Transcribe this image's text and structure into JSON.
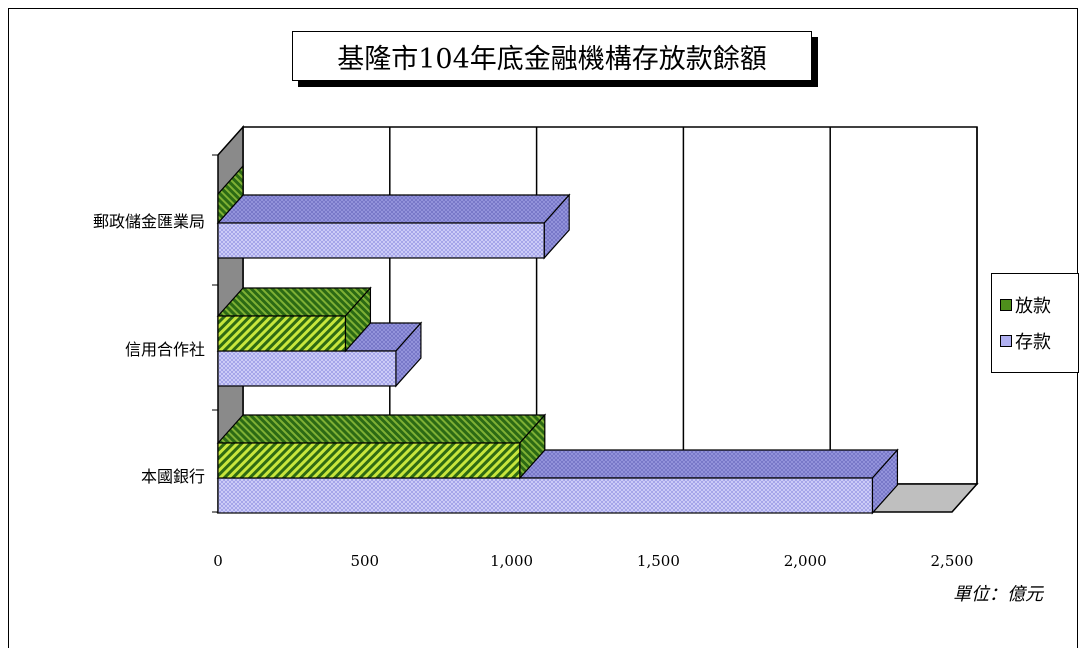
{
  "chart_data": {
    "type": "bar",
    "orientation": "horizontal",
    "title": "基隆市104年底金融機構存放款餘額",
    "categories": [
      "郵政儲金匯業局",
      "信用合作社",
      "本國銀行"
    ],
    "series": [
      {
        "name": "放款",
        "values": [
          0,
          434,
          1028
        ],
        "color": "#5a9e1f"
      },
      {
        "name": "存款",
        "values": [
          1111,
          606,
          2229
        ],
        "color": "#b0b0f0"
      }
    ],
    "xlim": [
      0,
      2500
    ],
    "xticks": [
      "0",
      "500",
      "1,000",
      "1,500",
      "2,000",
      "2,500"
    ],
    "grid": true,
    "unit_label": "單位：億元",
    "legend_position": "right"
  },
  "legend": {
    "items": [
      {
        "label": "放款",
        "color": "#5a9e1f"
      },
      {
        "label": "存款",
        "color": "#b0b0f0"
      }
    ]
  }
}
